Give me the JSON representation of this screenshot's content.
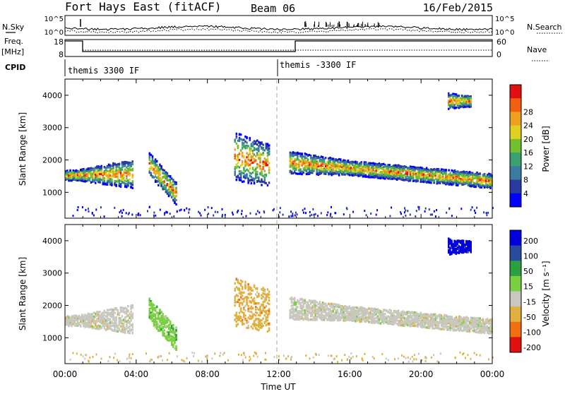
{
  "header": {
    "station": "Fort Hays East (fitACF)",
    "beam": "Beam 06",
    "date": "16/Feb/2015"
  },
  "top_panel": {
    "nsky_label": "N.Sky",
    "nsky_ticks": [
      "10^5",
      "10^0"
    ],
    "nsearch_label": "N.Search",
    "nsearch_ticks": [
      "10^5",
      "10^0"
    ],
    "freq_label_1": "Freq.",
    "freq_label_2": "[MHz]",
    "freq_ticks": [
      "18",
      "8"
    ],
    "nave_label": "Nave",
    "nave_ticks": [
      "60",
      "0"
    ],
    "cpid_label": "CPID",
    "cpid_segments": [
      {
        "text": "themis 3300 IF",
        "start_hour": 0
      },
      {
        "text": "themis -3300 IF",
        "start_hour": 12
      }
    ]
  },
  "chart_data": [
    {
      "type": "heatmap",
      "name": "power",
      "ylabel": "Slant Range [km]",
      "ylim": [
        200,
        4500
      ],
      "yticks": [
        1000,
        2000,
        3000,
        4000
      ],
      "xlim": [
        0,
        24
      ],
      "colorbar_label": "Power [dB]",
      "colorbar_ticks": [
        "4",
        "8",
        "12",
        "16",
        "20",
        "24",
        "28"
      ],
      "colors": [
        "#0000ff",
        "#2a3aa0",
        "#3d7aa0",
        "#3aa070",
        "#70c030",
        "#e0d020",
        "#f0a020",
        "#f06010",
        "#e01010"
      ],
      "regions": [
        {
          "hours": [
            0.0,
            3.8
          ],
          "range_start": [
            1450,
            1650
          ],
          "range_end": [
            1150,
            2050
          ],
          "thickness": 320
        },
        {
          "hours": [
            4.7,
            6.2
          ],
          "range_start": [
            1900,
            1900
          ],
          "range_end": [
            1000,
            1000
          ],
          "thickness": 700
        },
        {
          "hours": [
            9.5,
            11.5
          ],
          "range_start": [
            1400,
            2900
          ],
          "range_end": [
            1200,
            2500
          ],
          "thickness": 300
        },
        {
          "hours": [
            12.6,
            24.0
          ],
          "range_start": [
            2300,
            1600
          ],
          "range_end": [
            1300,
            1450
          ],
          "thickness": 450
        },
        {
          "hours": [
            21.5,
            22.8
          ],
          "range_start": [
            3600,
            4100
          ],
          "range_end": [
            3700,
            4000
          ],
          "thickness": 350
        }
      ]
    },
    {
      "type": "heatmap",
      "name": "velocity",
      "ylabel": "Slant Range [km]",
      "ylim": [
        200,
        4500
      ],
      "yticks": [
        1000,
        2000,
        3000,
        4000
      ],
      "xlim": [
        0,
        24
      ],
      "xticks": [
        "00:00",
        "04:00",
        "08:00",
        "12:00",
        "16:00",
        "20:00",
        "00:00"
      ],
      "xlabel": "Time UT",
      "colorbar_label": "Velocity [m s⁻¹]",
      "colorbar_ticks": [
        "200",
        "100",
        "50",
        "15",
        "-15",
        "-50",
        "-100",
        "-200"
      ],
      "colors": [
        "#0000dd",
        "#2a4aa0",
        "#2aa040",
        "#7ad040",
        "#c8c8c0",
        "#e0b040",
        "#f07010",
        "#e01010"
      ],
      "regions": [
        {
          "hours": [
            0.0,
            3.8
          ],
          "range_start": [
            1450,
            1650
          ],
          "range_end": [
            1150,
            2050
          ],
          "thickness": 320,
          "color_index": 4
        },
        {
          "hours": [
            4.7,
            6.2
          ],
          "range_start": [
            1900,
            1900
          ],
          "range_end": [
            1000,
            1000
          ],
          "thickness": 700,
          "color_index": 3
        },
        {
          "hours": [
            9.5,
            11.5
          ],
          "range_start": [
            1400,
            2900
          ],
          "range_end": [
            1200,
            2500
          ],
          "thickness": 300,
          "color_index": 5
        },
        {
          "hours": [
            12.6,
            24.0
          ],
          "range_start": [
            2300,
            1600
          ],
          "range_end": [
            1300,
            1450
          ],
          "thickness": 450,
          "color_index": 4
        },
        {
          "hours": [
            21.5,
            22.8
          ],
          "range_start": [
            3600,
            4100
          ],
          "range_end": [
            3700,
            4000
          ],
          "thickness": 350,
          "color_index": 0
        }
      ]
    }
  ]
}
